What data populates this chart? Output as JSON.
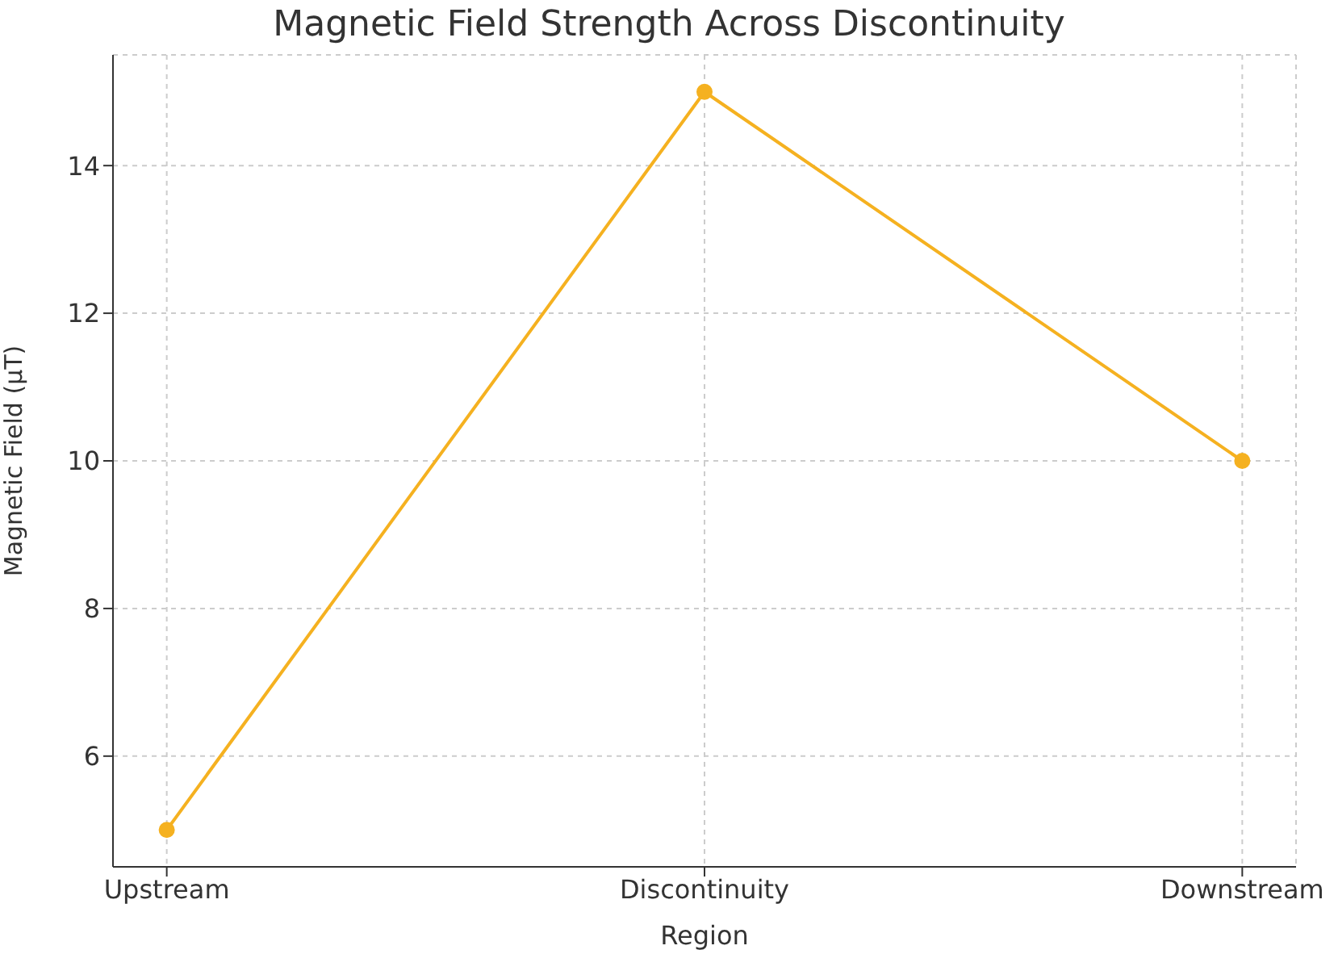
{
  "chart_data": {
    "type": "line",
    "title": "Magnetic Field Strength Across Discontinuity",
    "xlabel": "Region",
    "ylabel": "Magnetic Field (μT)",
    "categories": [
      "Upstream",
      "Discontinuity",
      "Downstream"
    ],
    "series": [
      {
        "color": "#f5b120",
        "values": [
          5,
          15,
          10
        ]
      }
    ],
    "ylim": [
      4.5,
      15.5
    ],
    "yticks": [
      6,
      8,
      10,
      12,
      14
    ],
    "grid": true,
    "marker": "circle",
    "line_style": "solid"
  }
}
